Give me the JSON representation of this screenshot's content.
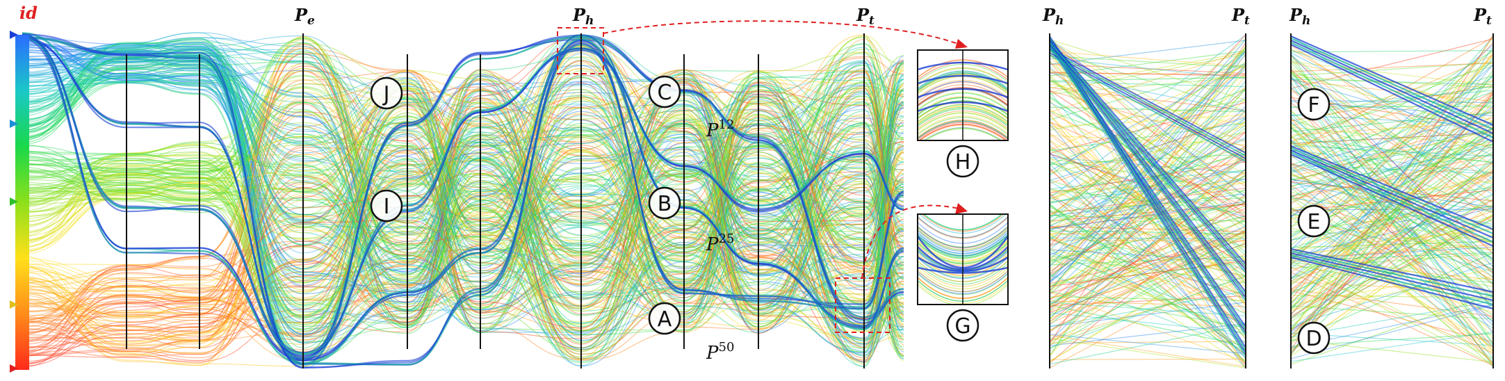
{
  "axis_labels": {
    "id": "id",
    "pe_base": "P",
    "pe_sub": "e",
    "ph_base": "P",
    "ph_sub": "h",
    "pt_base": "P",
    "pt_sub": "t"
  },
  "region_labels": [
    "A",
    "B",
    "C",
    "D",
    "E",
    "F",
    "G",
    "H",
    "I",
    "J"
  ],
  "percentile_labels": [
    {
      "base": "P",
      "sup": "12"
    },
    {
      "base": "P",
      "sup": "25"
    },
    {
      "base": "P",
      "sup": "50"
    }
  ],
  "colors": {
    "accent_red": "#e02020",
    "highlight_blue": "#1a3fd6",
    "axis": "#111111",
    "rainbow": [
      "#ff2a1a",
      "#ff8c1a",
      "#ffe01a",
      "#8ce01a",
      "#1ad84a",
      "#1ac8c8",
      "#2a6cff"
    ]
  },
  "panels": [
    {
      "name": "main-pcp",
      "axes": [
        "id",
        "Pe",
        "Ph",
        "Pt"
      ]
    },
    {
      "name": "zoom-H",
      "label": "H"
    },
    {
      "name": "zoom-G",
      "label": "G"
    },
    {
      "name": "ph-pt-all",
      "axes": [
        "Ph",
        "Pt"
      ]
    },
    {
      "name": "ph-pt-clusters",
      "axes": [
        "Ph",
        "Pt"
      ],
      "labels": [
        "F",
        "E",
        "D"
      ]
    }
  ]
}
